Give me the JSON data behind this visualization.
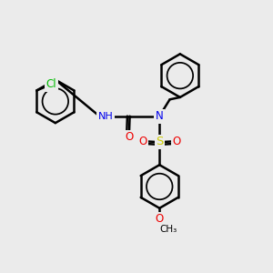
{
  "bg_color": "#ebebeb",
  "bond_color": "#000000",
  "bond_width": 1.8,
  "atom_colors": {
    "N": "#0000ee",
    "O": "#ee0000",
    "S": "#cccc00",
    "Cl": "#00bb00",
    "H": "#555555"
  },
  "font_size": 8.5,
  "fig_size": [
    3.0,
    3.0
  ],
  "dpi": 100,
  "xlim": [
    0,
    10
  ],
  "ylim": [
    0,
    10
  ]
}
